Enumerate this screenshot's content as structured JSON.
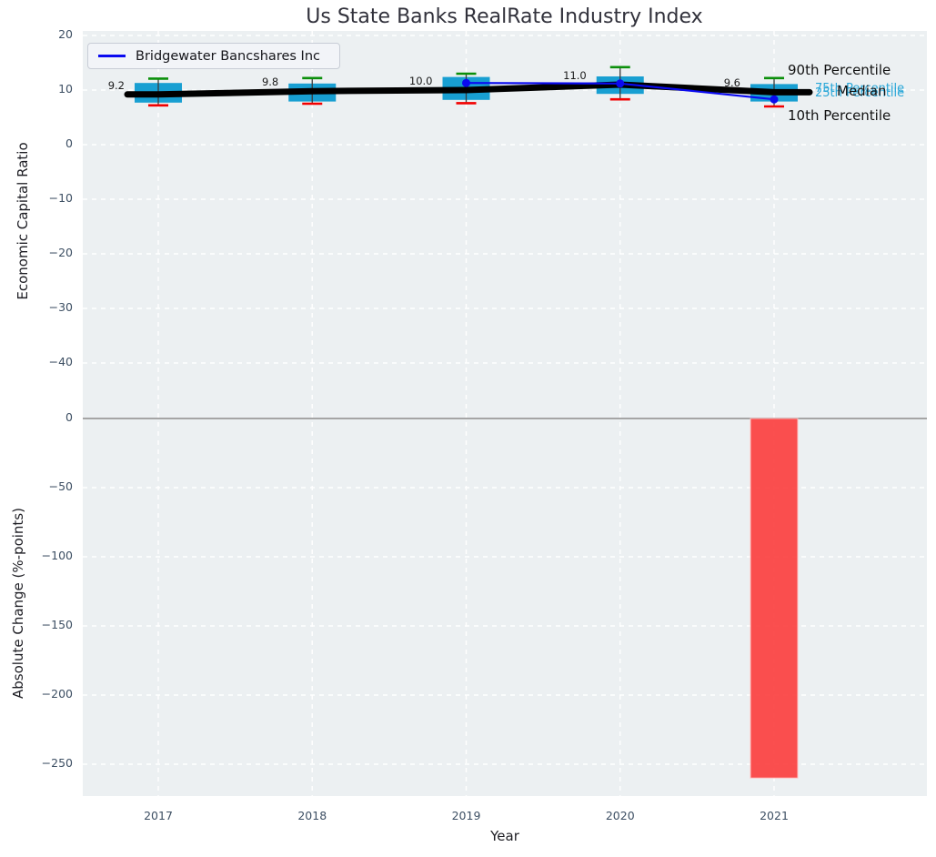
{
  "title": "Us State Banks RealRate Industry Index",
  "legend": {
    "label": "Bridgewater Bancshares Inc"
  },
  "right_labels": {
    "p90": "90th Percentile",
    "p75": "75th Percentile",
    "median": "Median",
    "p25": "25th Percentile",
    "p10": "10th Percentile"
  },
  "colors": {
    "plot_bg": "#ecf0f2",
    "grid": "#ffffff",
    "box_fill": "#189fd2",
    "whisker_cap_top": "#0a8f0a",
    "whisker_cap_bottom": "#f20000",
    "whisker_line": "#3a3a3a",
    "median_line": "#000000",
    "company_line": "#0a0af0",
    "bar_negative": "#fb4040",
    "zero_line": "#a5a5a5",
    "tick_text": "#3d4f63",
    "percentile_cyan": "#2aa7d8",
    "annotation_text": "#1b1b1b"
  },
  "chart_data": [
    {
      "type": "box",
      "ylabel": "Economic Capital Ratio",
      "categories": [
        "2017",
        "2018",
        "2019",
        "2020",
        "2021"
      ],
      "yticks": [
        20,
        10,
        0,
        -10,
        -20,
        -30,
        -40
      ],
      "ylim": [
        -50,
        21
      ],
      "grid": true,
      "legend_position": "upper left",
      "boxes": [
        {
          "year": "2017",
          "p90": 12.1,
          "q3": 11.3,
          "median": 9.2,
          "q1": 7.7,
          "p10": 7.2,
          "label": "9.2"
        },
        {
          "year": "2018",
          "p90": 12.2,
          "q3": 11.2,
          "median": 9.8,
          "q1": 7.9,
          "p10": 7.5,
          "label": "9.8"
        },
        {
          "year": "2019",
          "p90": 13.0,
          "q3": 12.4,
          "median": 10.0,
          "q1": 8.2,
          "p10": 7.6,
          "label": "10.0"
        },
        {
          "year": "2020",
          "p90": 14.2,
          "q3": 12.5,
          "median": 11.0,
          "q1": 9.3,
          "p10": 8.3,
          "label": "11.0"
        },
        {
          "year": "2021",
          "p90": 12.2,
          "q3": 11.1,
          "median": 9.6,
          "q1": 7.9,
          "p10": 7.0,
          "label": "9.6"
        }
      ],
      "series": [
        {
          "name": "Bridgewater Bancshares Inc",
          "x": [
            "2019",
            "2020",
            "2021"
          ],
          "values": [
            11.3,
            11.2,
            8.3
          ]
        }
      ]
    },
    {
      "type": "bar",
      "xlabel": "Year",
      "ylabel": "Absolute Change (%-points)",
      "categories": [
        "2017",
        "2018",
        "2019",
        "2020",
        "2021"
      ],
      "values": [
        null,
        null,
        null,
        null,
        -260
      ],
      "yticks": [
        0,
        -50,
        -100,
        -150,
        -200,
        -250
      ],
      "ylim": [
        -272,
        6
      ],
      "grid": true
    }
  ]
}
